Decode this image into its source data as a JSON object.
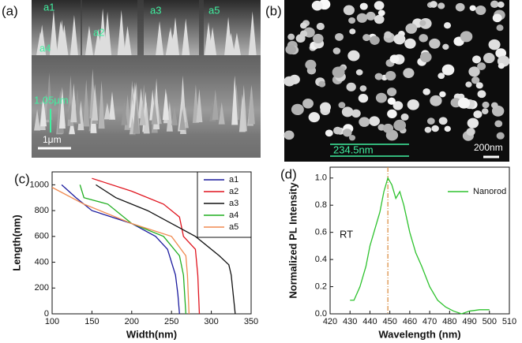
{
  "images": {
    "a": {
      "label": "(a)",
      "insets": [
        "a1",
        "a2",
        "a3",
        "a5",
        "a4"
      ],
      "height_label": "1.05μm",
      "scale_bar": "1μm"
    },
    "b": {
      "label": "(b)",
      "size_label": "234.5nm",
      "scale_bar": "200nm"
    }
  },
  "chart_data": [
    {
      "type": "line",
      "panel_label": "(c)",
      "x_label": "Width(nm)",
      "y_label": "Length(nm)",
      "xlim": [
        100,
        350
      ],
      "xticks": [
        100,
        150,
        200,
        250,
        300,
        350
      ],
      "ylim": [
        0,
        1100
      ],
      "yticks": [
        0,
        200,
        400,
        600,
        800,
        1000
      ],
      "legend": "upper right",
      "series": [
        {
          "name": "a1",
          "color": "#1a1a9e",
          "x": [
            112,
            130,
            150,
            200,
            230,
            245,
            250,
            255,
            258,
            260
          ],
          "values": [
            1000,
            900,
            800,
            700,
            600,
            500,
            400,
            300,
            150,
            0
          ]
        },
        {
          "name": "a2",
          "color": "#e0141e",
          "x": [
            150,
            200,
            240,
            260,
            265,
            280,
            283,
            285
          ],
          "values": [
            1050,
            950,
            850,
            750,
            600,
            500,
            300,
            0
          ]
        },
        {
          "name": "a3",
          "color": "#111111",
          "x": [
            155,
            180,
            220,
            250,
            280,
            310,
            322,
            325,
            330
          ],
          "values": [
            1000,
            900,
            800,
            700,
            600,
            450,
            380,
            300,
            0
          ]
        },
        {
          "name": "a4",
          "color": "#1fae1f",
          "x": [
            135,
            140,
            170,
            200,
            240,
            260,
            265,
            268
          ],
          "values": [
            1000,
            900,
            850,
            700,
            600,
            450,
            300,
            0
          ]
        },
        {
          "name": "a5",
          "color": "#f08a50",
          "x": [
            100,
            140,
            200,
            250,
            268,
            270,
            272
          ],
          "values": [
            980,
            850,
            700,
            600,
            450,
            300,
            0
          ]
        }
      ]
    },
    {
      "type": "line",
      "panel_label": "(d)",
      "x_label": "Wavelength (nm)",
      "y_label": "Normalized PL Intensity",
      "xlim": [
        420,
        510
      ],
      "xticks": [
        420,
        430,
        440,
        450,
        460,
        470,
        480,
        490,
        500,
        510
      ],
      "ylim": [
        0,
        1.08
      ],
      "yticks": [
        {
          "value": 0,
          "label": "0.0"
        },
        0.2,
        0.4,
        0.6,
        0.8,
        {
          "value": 1,
          "label": "1.0"
        }
      ],
      "legend": "upper right",
      "annotation": "RT",
      "vline": {
        "x": 449,
        "color": "#d9893a"
      },
      "x": [
        430,
        432,
        435,
        438,
        440,
        443,
        445,
        447,
        449,
        451,
        453,
        455,
        457,
        460,
        463,
        466,
        470,
        474,
        478,
        482,
        486,
        490,
        495,
        500
      ],
      "series": [
        {
          "name": "Nanorod",
          "color": "#2ec22e",
          "values": [
            0.1,
            0.1,
            0.2,
            0.35,
            0.5,
            0.65,
            0.75,
            0.9,
            1.0,
            0.95,
            0.85,
            0.9,
            0.8,
            0.6,
            0.45,
            0.35,
            0.2,
            0.1,
            0.05,
            0.02,
            0.0,
            0.02,
            0.03,
            0.03
          ]
        }
      ]
    }
  ]
}
